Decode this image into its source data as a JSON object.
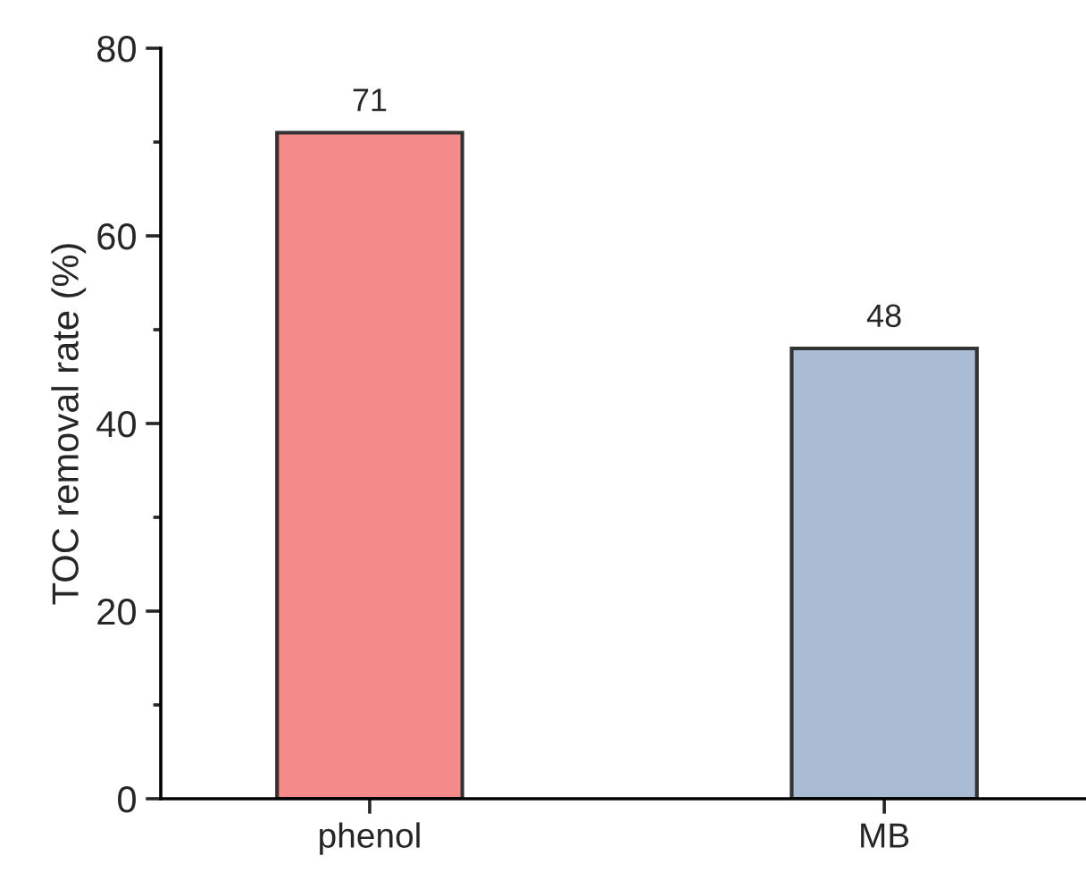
{
  "chart_data": {
    "type": "bar",
    "ylabel": "TOC removal rate (%)",
    "categories": [
      "phenol",
      "MB"
    ],
    "values": [
      71,
      48
    ],
    "colors": [
      "#f48a8a",
      "#a9bcd3"
    ],
    "ylim": [
      0,
      80
    ],
    "yticks": [
      0,
      20,
      40,
      60,
      80
    ],
    "data_labels": true,
    "grid": false
  }
}
